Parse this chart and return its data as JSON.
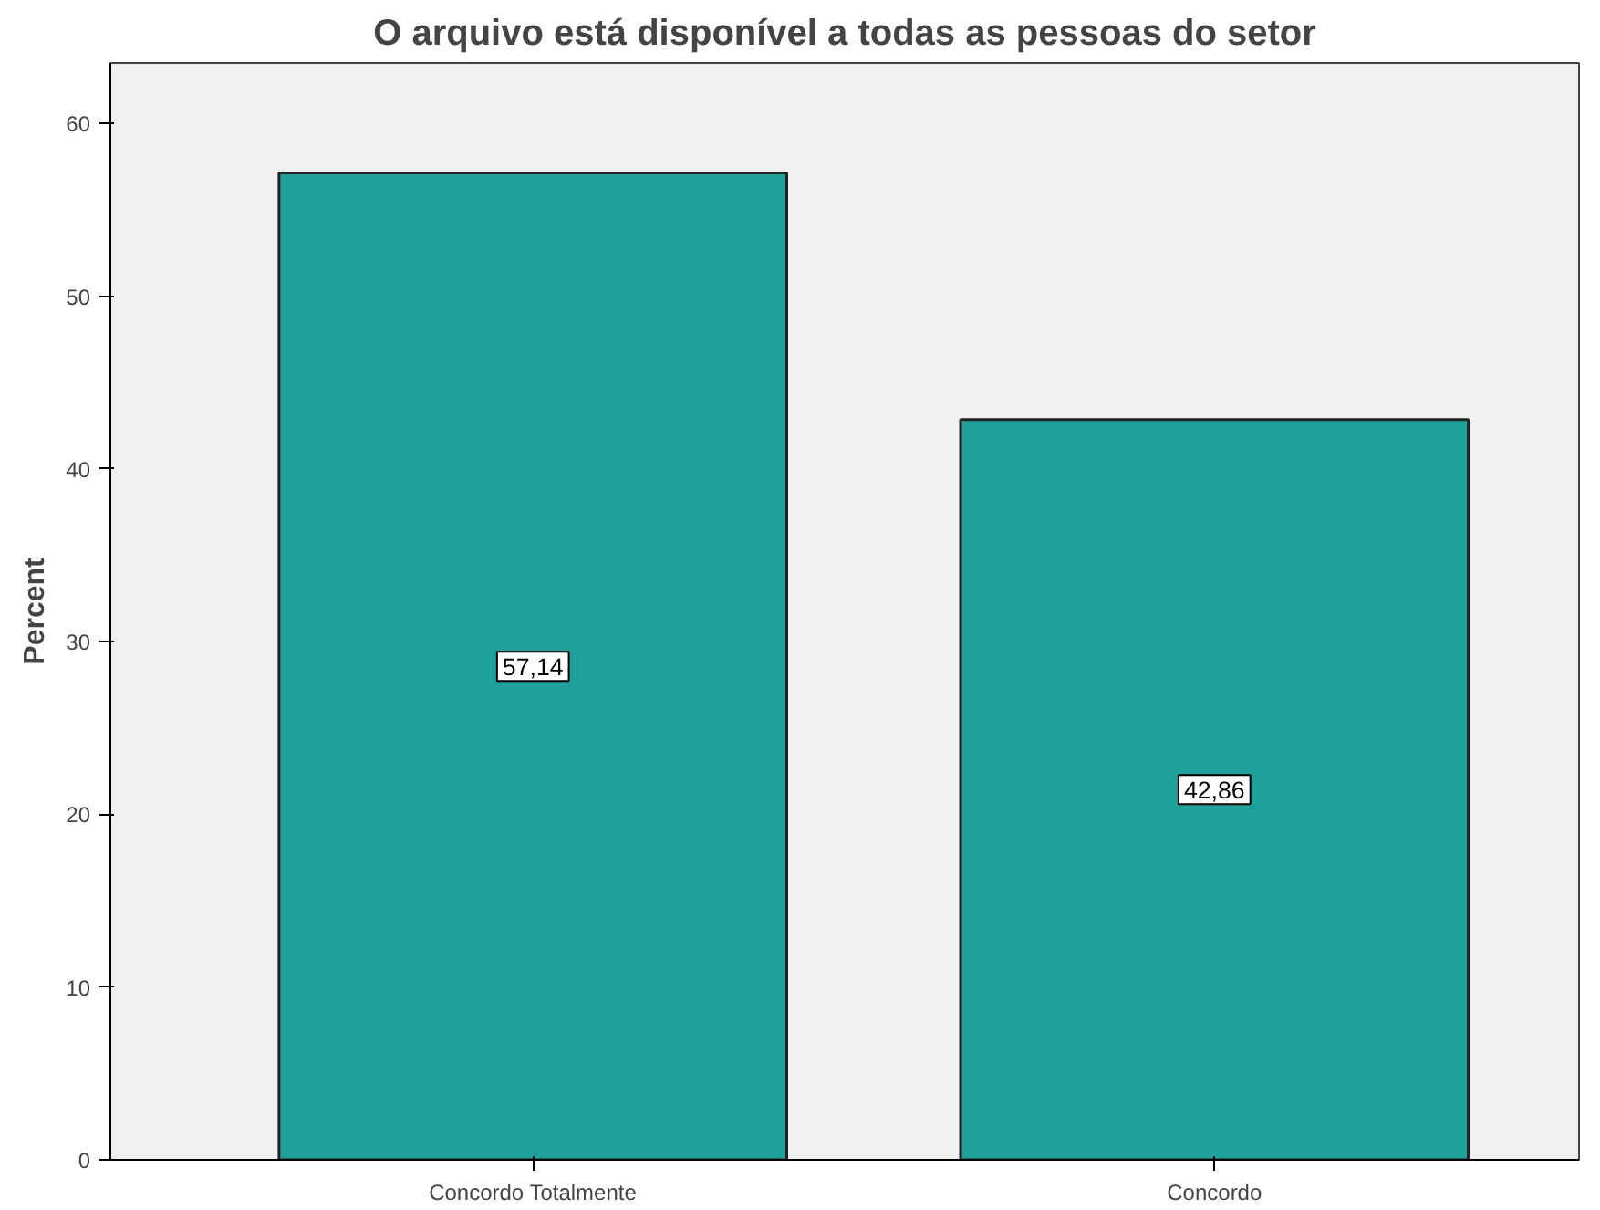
{
  "chart_data": {
    "type": "bar",
    "title": "O arquivo está disponível a todas as pessoas do setor",
    "ylabel": "Percent",
    "categories": [
      "Concordo Totalmente",
      "Concordo"
    ],
    "values": [
      57.14,
      42.86
    ],
    "value_labels": [
      "57,14",
      "42,86"
    ],
    "color": "#1fa09b",
    "ylim": [
      0,
      63.5
    ],
    "yticks": [
      0,
      10,
      20,
      30,
      40,
      50,
      60
    ],
    "grid": false
  }
}
